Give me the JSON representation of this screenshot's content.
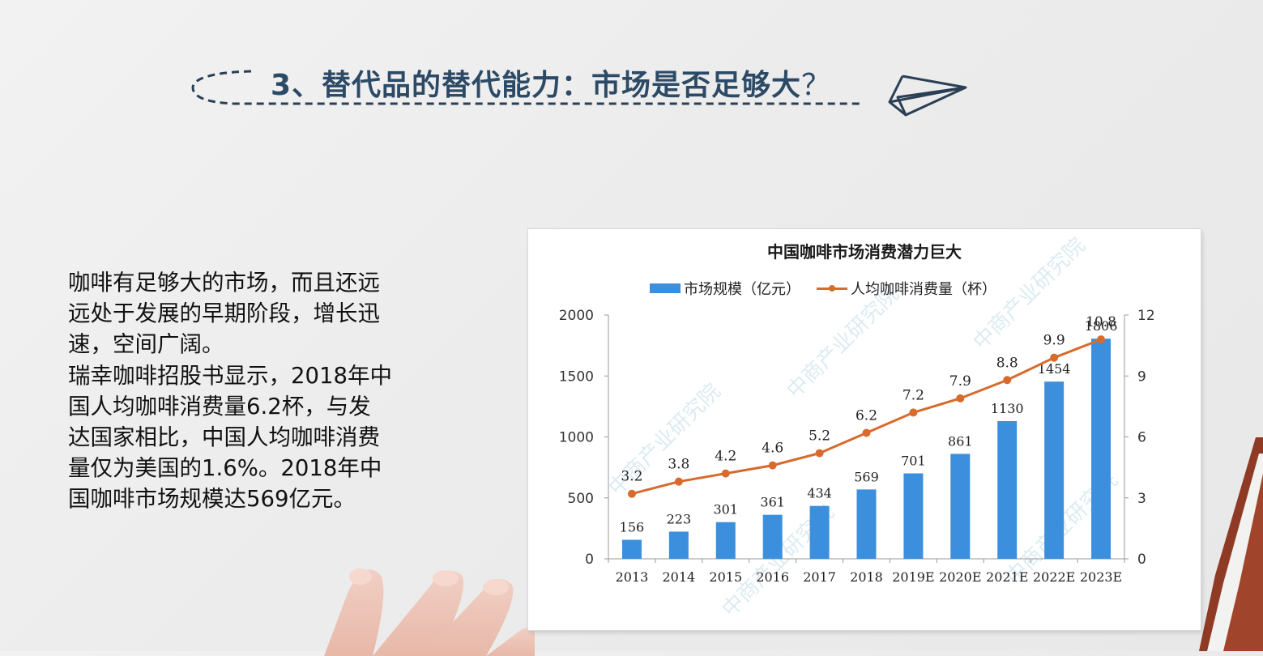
{
  "slide": {
    "title": "3、替代品的替代能力：市场是否足够大",
    "title_qmark": "？",
    "body": [
      "咖啡有足够大的市场，而且还远远处于发展的早期阶段，增长迅速，空间广阔。",
      "瑞幸咖啡招股书显示，2018年中国人均咖啡消费量6.2杯，与发达国家相比，中国人均咖啡消费量仅为美国的1.6%。2018年中国咖啡市场规模达569亿元。"
    ],
    "body_lines": [
      "咖啡有足够大的市场，而且还远",
      "远处于发展的早期阶段，增长迅",
      "速，空间广阔。",
      "瑞幸咖啡招股书显示，2018年中",
      "国人均咖啡消费量6.2杯，与发",
      "达国家相比，中国人均咖啡消费",
      "量仅为美国的1.6%。2018年中",
      "国咖啡市场规模达569亿元。"
    ],
    "icons": [
      "paper-plane-icon",
      "dashed-ellipse-decoration"
    ]
  },
  "chart_data": {
    "type": "bar+line",
    "title": "中国咖啡市场消费潜力巨大",
    "categories": [
      "2013",
      "2014",
      "2015",
      "2016",
      "2017",
      "2018",
      "2019E",
      "2020E",
      "2021E",
      "2022E",
      "2023E"
    ],
    "series": [
      {
        "name": "市场规模（亿元）",
        "type": "bar",
        "axis": "left",
        "color": "#3c8fdc",
        "values": [
          156,
          223,
          301,
          361,
          434,
          569,
          701,
          861,
          1130,
          1454,
          1806
        ]
      },
      {
        "name": "人均咖啡消费量（杯）",
        "type": "line",
        "axis": "right",
        "color": "#d86a2c",
        "values": [
          3.2,
          3.8,
          4.2,
          4.6,
          5.2,
          6.2,
          7.2,
          7.9,
          8.8,
          9.9,
          10.8
        ]
      }
    ],
    "y_left": {
      "ticks": [
        "0",
        "500",
        "1000",
        "1500",
        "2000"
      ],
      "range": [
        0,
        2000
      ]
    },
    "y_right": {
      "ticks": [
        "0",
        "3",
        "6",
        "9",
        "12"
      ],
      "range": [
        0,
        12
      ]
    },
    "xlabel": "",
    "ylabel": "",
    "grid": false,
    "legend_position": "top",
    "watermark": "中商产业研究院"
  }
}
